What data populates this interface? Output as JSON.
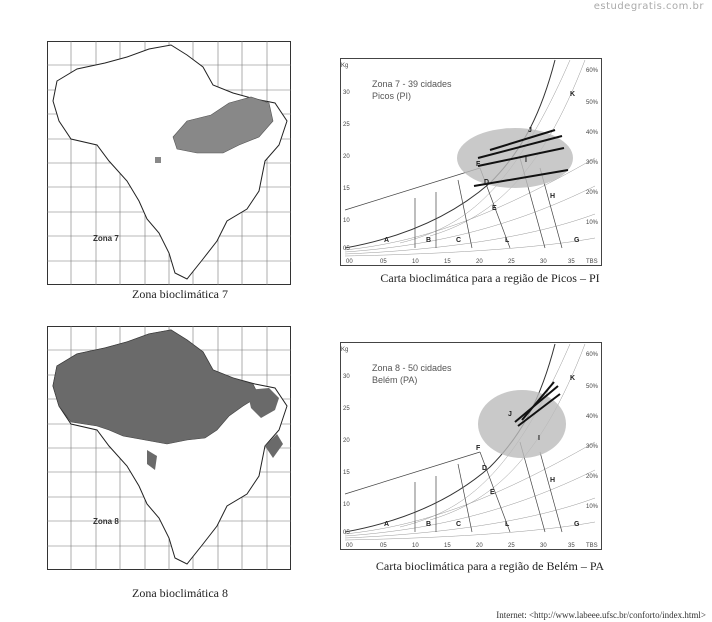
{
  "watermark": "estudegratis.com.br",
  "panels": [
    {
      "zone_label": "Zona 7",
      "map_caption": "Zona bioclimática 7",
      "chart_overlay_line1": "Zona 7 - 39 cidades",
      "chart_overlay_line2": "Picos (PI)",
      "chart_caption": "Carta bioclimática para a região de Picos – PI"
    },
    {
      "zone_label": "Zona 8",
      "map_caption": "Zona bioclimática 8",
      "chart_overlay_line1": "Zona 8 - 50 cidades",
      "chart_overlay_line2": "Belém (PA)",
      "chart_caption": "Carta bioclimática para a região de Belém – PA"
    }
  ],
  "chart_axes": {
    "x_ticks": [
      "00",
      "05",
      "10",
      "15",
      "20",
      "25",
      "30",
      "35",
      "TBS"
    ],
    "y_left_ticks": [
      "30",
      "25",
      "20",
      "15",
      "10",
      "05",
      "00"
    ],
    "y_left_label": "Kg",
    "y_right_ticks": [
      "60%",
      "50%",
      "40%",
      "30%",
      "20%",
      "10%"
    ],
    "region_letters": [
      "A",
      "B",
      "C",
      "D",
      "E",
      "F",
      "G",
      "H",
      "I",
      "J",
      "K",
      "L"
    ]
  },
  "source": "Internet: <http://www.labeee.ufsc.br/conforto/index.html>"
}
